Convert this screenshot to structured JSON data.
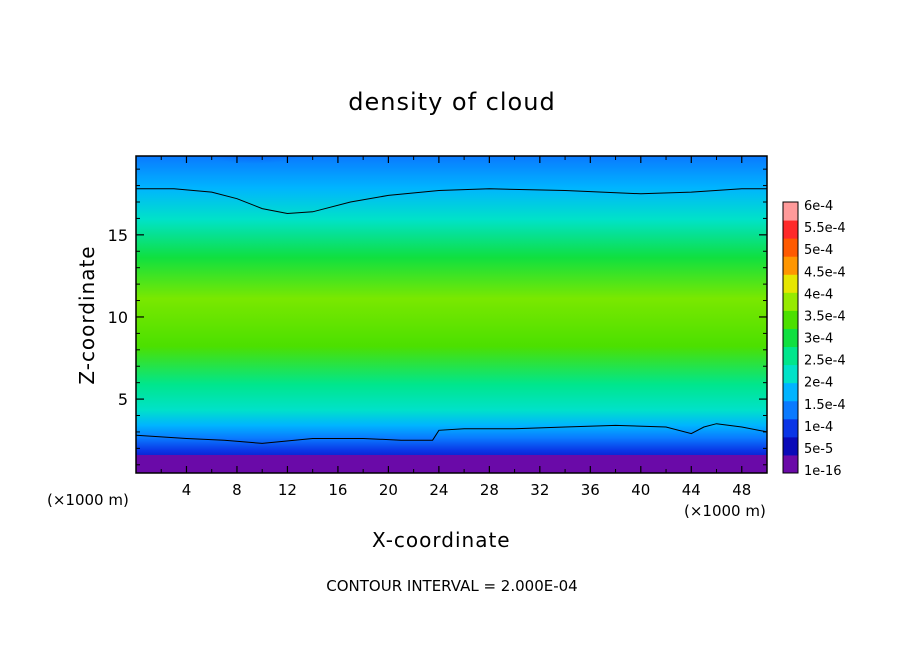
{
  "chart_data": {
    "type": "heatmap",
    "title": "density of cloud",
    "xlabel": "X-coordinate",
    "ylabel": "Z-coordinate",
    "x_unit": "(×1000 m)",
    "y_unit": "(×1000 m)",
    "xlim": [
      0,
      50
    ],
    "ylim": [
      0.5,
      19.8
    ],
    "x_ticks": [
      4,
      8,
      12,
      16,
      20,
      24,
      28,
      32,
      36,
      40,
      44,
      48
    ],
    "y_ticks": [
      5,
      10,
      15
    ],
    "contour_interval_text": "CONTOUR INTERVAL = 2.000E-04",
    "colorbar": {
      "levels": [
        1e-16,
        5e-05,
        0.0001,
        0.00015,
        0.0002,
        0.00025,
        0.0003,
        0.00035,
        0.0004,
        0.00045,
        0.0005,
        0.00055,
        0.0006
      ],
      "labels": [
        "1e-16",
        "5e-5",
        "1e-4",
        "1.5e-4",
        "2e-4",
        "2.5e-4",
        "3e-4",
        "3.5e-4",
        "4e-4",
        "4.5e-4",
        "5e-4",
        "5.5e-4",
        "6e-4"
      ],
      "colors": [
        "#6a0aa8",
        "#0a0ab8",
        "#0a35e6",
        "#0a7aff",
        "#00b4ff",
        "#00e2c8",
        "#00e68c",
        "#10e040",
        "#4ce000",
        "#96ea00",
        "#e6e600",
        "#ff9600",
        "#ff5a00",
        "#ff2a2a",
        "#ff9a9a"
      ]
    },
    "contour_lines": [
      {
        "level": 0.0002,
        "points": [
          [
            0,
            17.8
          ],
          [
            3,
            17.8
          ],
          [
            6,
            17.6
          ],
          [
            8,
            17.2
          ],
          [
            10,
            16.6
          ],
          [
            12,
            16.3
          ],
          [
            14,
            16.4
          ],
          [
            17,
            17.0
          ],
          [
            20,
            17.4
          ],
          [
            24,
            17.7
          ],
          [
            28,
            17.8
          ],
          [
            34,
            17.7
          ],
          [
            40,
            17.5
          ],
          [
            44,
            17.6
          ],
          [
            48,
            17.8
          ],
          [
            50,
            17.8
          ]
        ]
      },
      {
        "level": 0.0002,
        "points": [
          [
            0,
            2.8
          ],
          [
            4,
            2.6
          ],
          [
            7,
            2.5
          ],
          [
            10,
            2.3
          ],
          [
            14,
            2.6
          ],
          [
            18,
            2.6
          ],
          [
            21,
            2.5
          ],
          [
            23.5,
            2.5
          ],
          [
            24,
            3.1
          ],
          [
            26,
            3.2
          ],
          [
            30,
            3.2
          ],
          [
            34,
            3.3
          ],
          [
            38,
            3.4
          ],
          [
            42,
            3.3
          ],
          [
            44,
            2.9
          ],
          [
            45,
            3.3
          ],
          [
            46,
            3.5
          ],
          [
            48,
            3.3
          ],
          [
            50,
            3.0
          ]
        ]
      }
    ]
  }
}
